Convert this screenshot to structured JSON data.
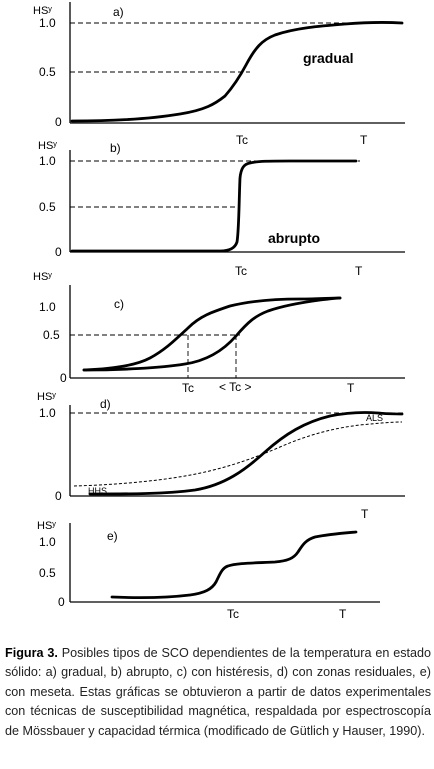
{
  "chart_data": [
    {
      "panel_label": "a)",
      "type": "line",
      "ylabel": "HSʸ",
      "xlabel": "T",
      "x_ticks": [
        "Tc"
      ],
      "y_ticks": [
        "0",
        "0.5",
        "1.0"
      ],
      "annotation": "gradual",
      "series": [
        {
          "style": "bold",
          "x": [
            0.0,
            0.3,
            0.5,
            0.6,
            0.7,
            0.75,
            0.8,
            0.85,
            0.9,
            0.95,
            1.0,
            1.1,
            1.3,
            1.6
          ],
          "y": [
            0.0,
            0.01,
            0.04,
            0.09,
            0.16,
            0.24,
            0.34,
            0.55,
            0.78,
            0.9,
            0.95,
            0.97,
            0.99,
            1.0
          ]
        }
      ]
    },
    {
      "panel_label": "b)",
      "type": "line",
      "ylabel": "HSʸ",
      "xlabel": "T",
      "x_ticks": [
        "Tc"
      ],
      "y_ticks": [
        "0",
        "0.5",
        "1.0"
      ],
      "annotation": "abrupto",
      "series": [
        {
          "style": "bold",
          "x": [
            0.0,
            0.55,
            0.58,
            0.6,
            0.62,
            0.63,
            0.66,
            0.8,
            1.2
          ],
          "y": [
            0.0,
            0.0,
            0.02,
            0.08,
            0.9,
            0.97,
            1.0,
            1.0,
            1.0
          ]
        }
      ]
    },
    {
      "panel_label": "c)",
      "type": "line",
      "ylabel": "HSʸ",
      "xlabel": "T",
      "x_ticks": [
        "Tc",
        "< Tc >"
      ],
      "y_ticks": [
        "0",
        "0.5",
        "1.0"
      ],
      "series": [
        {
          "style": "bold",
          "x": [
            0.0,
            0.25,
            0.4,
            0.48,
            0.55,
            0.7,
            0.9,
            1.1,
            1.25
          ],
          "y": [
            0.0,
            0.05,
            0.2,
            0.4,
            0.6,
            0.8,
            0.93,
            0.99,
            1.0
          ]
        },
        {
          "style": "bold",
          "x": [
            0.0,
            0.3,
            0.45,
            0.55,
            0.65,
            0.75,
            0.9,
            1.1,
            1.25
          ],
          "y": [
            0.0,
            0.02,
            0.05,
            0.2,
            0.45,
            0.68,
            0.85,
            0.96,
            1.0
          ]
        }
      ]
    },
    {
      "panel_label": "d)",
      "type": "line",
      "ylabel": "HSʸ",
      "xlabel": "",
      "y_ticks": [
        "0",
        "1.0"
      ],
      "series": [
        {
          "style": "bold",
          "x": [
            0.0,
            0.2,
            0.35,
            0.45,
            0.55,
            0.65,
            0.75,
            0.85,
            0.95,
            1.05,
            1.2
          ],
          "y": [
            0.0,
            0.0,
            0.03,
            0.1,
            0.27,
            0.5,
            0.73,
            0.9,
            0.98,
            1.0,
            0.98
          ]
        },
        {
          "style": "dashed",
          "x": [
            0.0,
            0.15,
            0.3,
            0.45,
            0.6,
            0.75,
            0.9,
            1.05,
            1.2
          ],
          "y": [
            0.08,
            0.1,
            0.17,
            0.3,
            0.47,
            0.64,
            0.78,
            0.86,
            0.89
          ]
        }
      ],
      "annotations": [
        "ALS",
        "HHS"
      ]
    },
    {
      "panel_label": "e)",
      "type": "line",
      "ylabel": "HSʸ",
      "xlabel": "T",
      "x_ticks": [
        "Tc"
      ],
      "y_ticks": [
        "0",
        "0.5",
        "1.0"
      ],
      "series": [
        {
          "style": "bold",
          "x": [
            0.0,
            0.2,
            0.35,
            0.45,
            0.48,
            0.52,
            0.58,
            0.7,
            0.78,
            0.82,
            0.86,
            0.9,
            1.0,
            1.1
          ],
          "y": [
            0.0,
            0.0,
            0.03,
            0.08,
            0.2,
            0.35,
            0.4,
            0.42,
            0.47,
            0.6,
            0.73,
            0.79,
            0.84,
            0.9
          ]
        }
      ]
    }
  ],
  "caption": {
    "label": "Figura 3.",
    "text": " Posibles tipos de SCO dependientes de la temperatura en estado sólido: a) gradual, b) abrupto, c) con histéresis, d) con zonas residuales, e) con meseta. Estas gráficas se obtuvieron a partir de datos experimentales con técnicas de susceptibilidad magnética, respaldada por espectroscopía de Mössbauer y capacidad térmica (modificado de Gütlich y Hauser, 1990)."
  }
}
